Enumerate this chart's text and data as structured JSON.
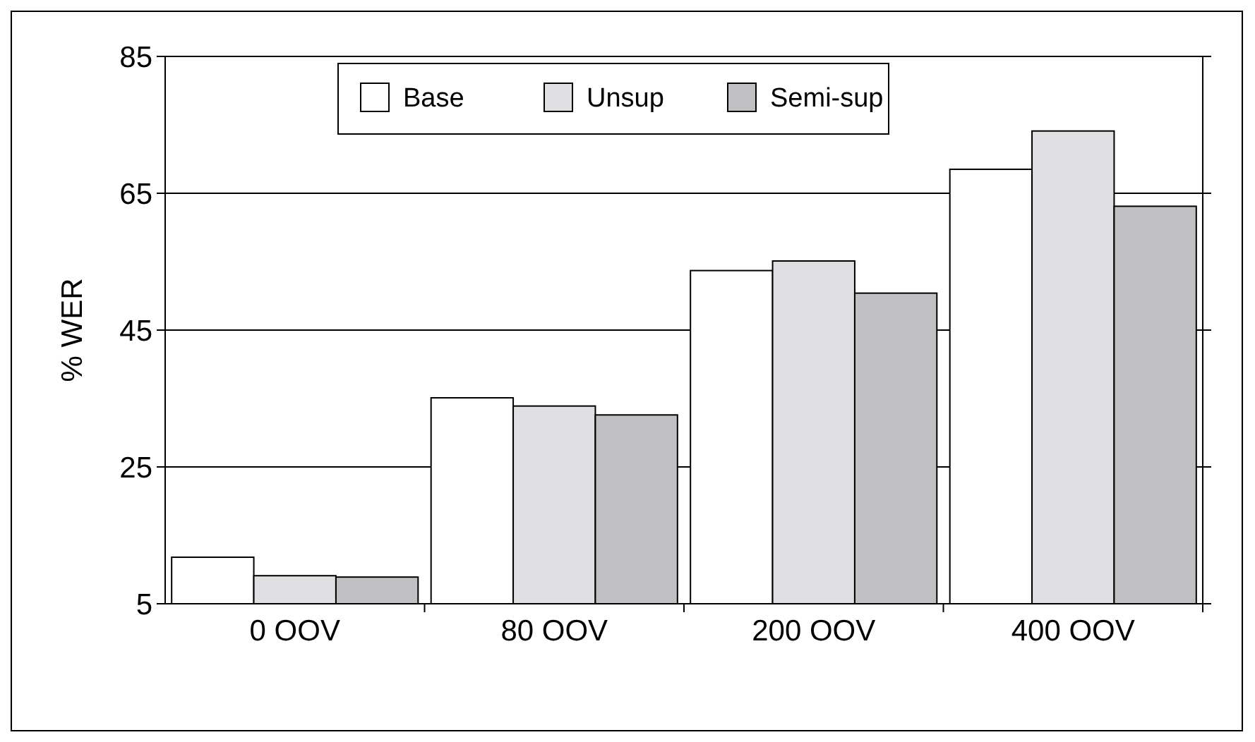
{
  "chart_data": {
    "type": "bar",
    "ylabel": "% WER",
    "categories": [
      "0 OOV",
      "80 OOV",
      "200 OOV",
      "400 OOV"
    ],
    "series": [
      {
        "name": "Base",
        "color": "#ffffff",
        "values": [
          11.8,
          35.1,
          53.7,
          68.5
        ]
      },
      {
        "name": "Unsup",
        "color": "#e0e0e2",
        "values": [
          9.1,
          33.9,
          55.1,
          74.1
        ]
      },
      {
        "name": "Semi-sup",
        "color": "#c0c0c2",
        "values": [
          8.9,
          32.6,
          50.4,
          63.1
        ]
      }
    ],
    "ylim": [
      5,
      85
    ],
    "yticks": [
      5,
      25,
      45,
      65,
      85
    ],
    "grid": "y",
    "legend": "top"
  }
}
